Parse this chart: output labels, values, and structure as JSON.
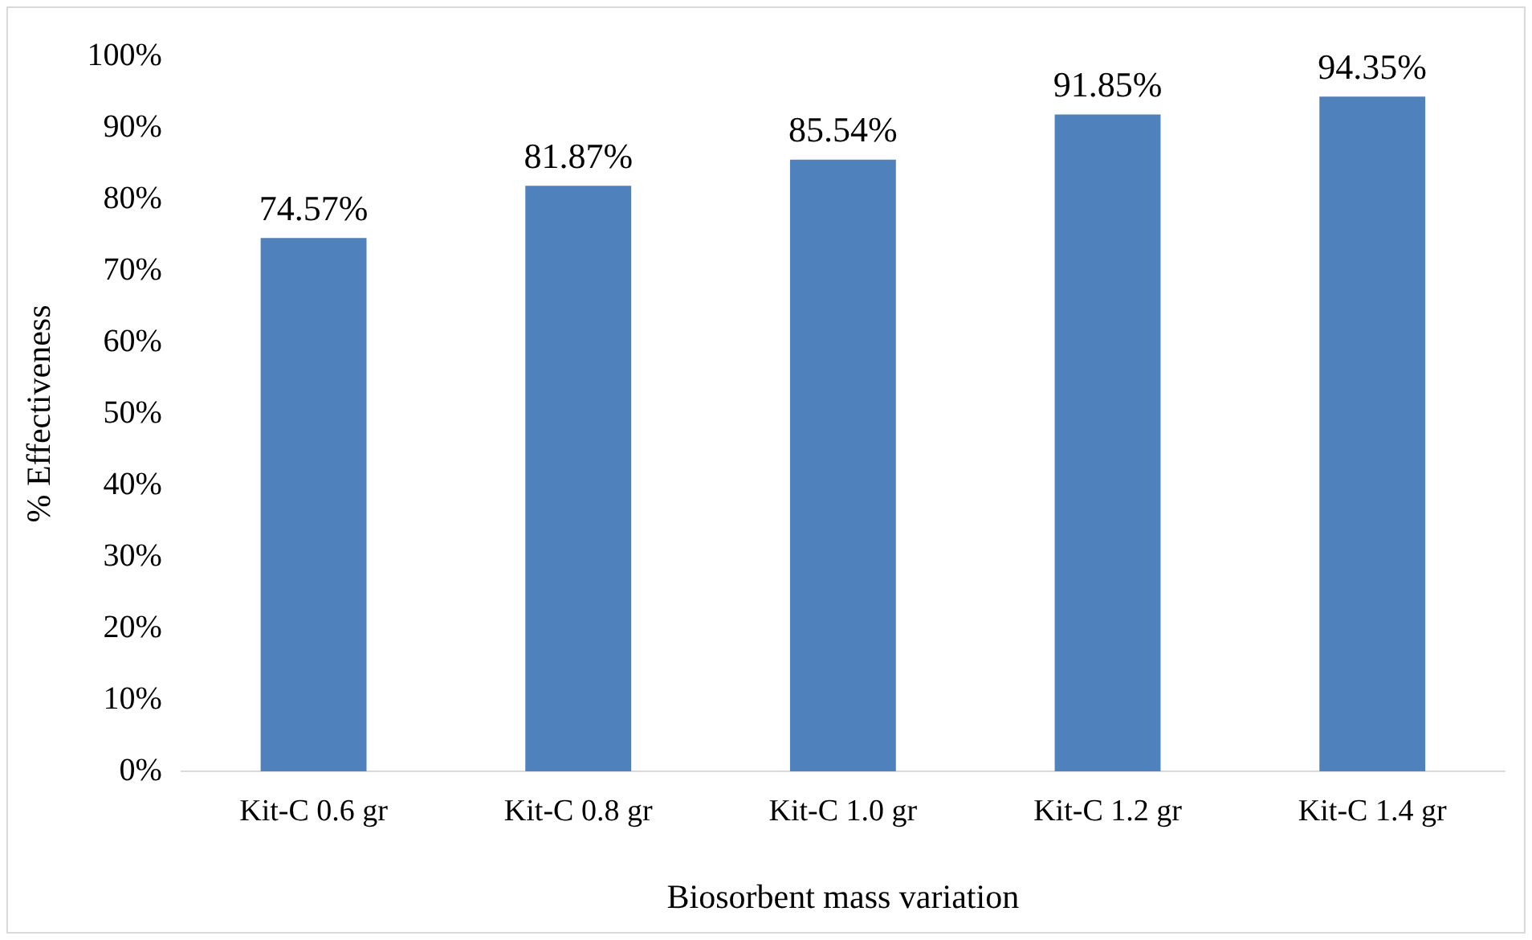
{
  "chart_data": {
    "type": "bar",
    "xlabel": "Biosorbent mass variation",
    "ylabel": "% Effectiveness",
    "categories": [
      "Kit-C 0.6 gr",
      "Kit-C 0.8 gr",
      "Kit-C 1.0 gr",
      "Kit-C 1.2 gr",
      "Kit-C 1.4 gr"
    ],
    "values": [
      74.57,
      81.87,
      85.54,
      91.85,
      94.35
    ],
    "value_labels": [
      "74.57%",
      "81.87%",
      "85.54%",
      "91.85%",
      "94.35%"
    ],
    "color": "#4f81bd",
    "ylim": [
      0,
      100
    ],
    "yticks": [
      {
        "value": 0,
        "label": "0%"
      },
      {
        "value": 10,
        "label": "10%"
      },
      {
        "value": 20,
        "label": "20%"
      },
      {
        "value": 30,
        "label": "30%"
      },
      {
        "value": 40,
        "label": "40%"
      },
      {
        "value": 50,
        "label": "50%"
      },
      {
        "value": 60,
        "label": "60%"
      },
      {
        "value": 70,
        "label": "70%"
      },
      {
        "value": 80,
        "label": "80%"
      },
      {
        "value": 90,
        "label": "90%"
      },
      {
        "value": 100,
        "label": "100%"
      }
    ],
    "grid": false,
    "legend": false
  }
}
